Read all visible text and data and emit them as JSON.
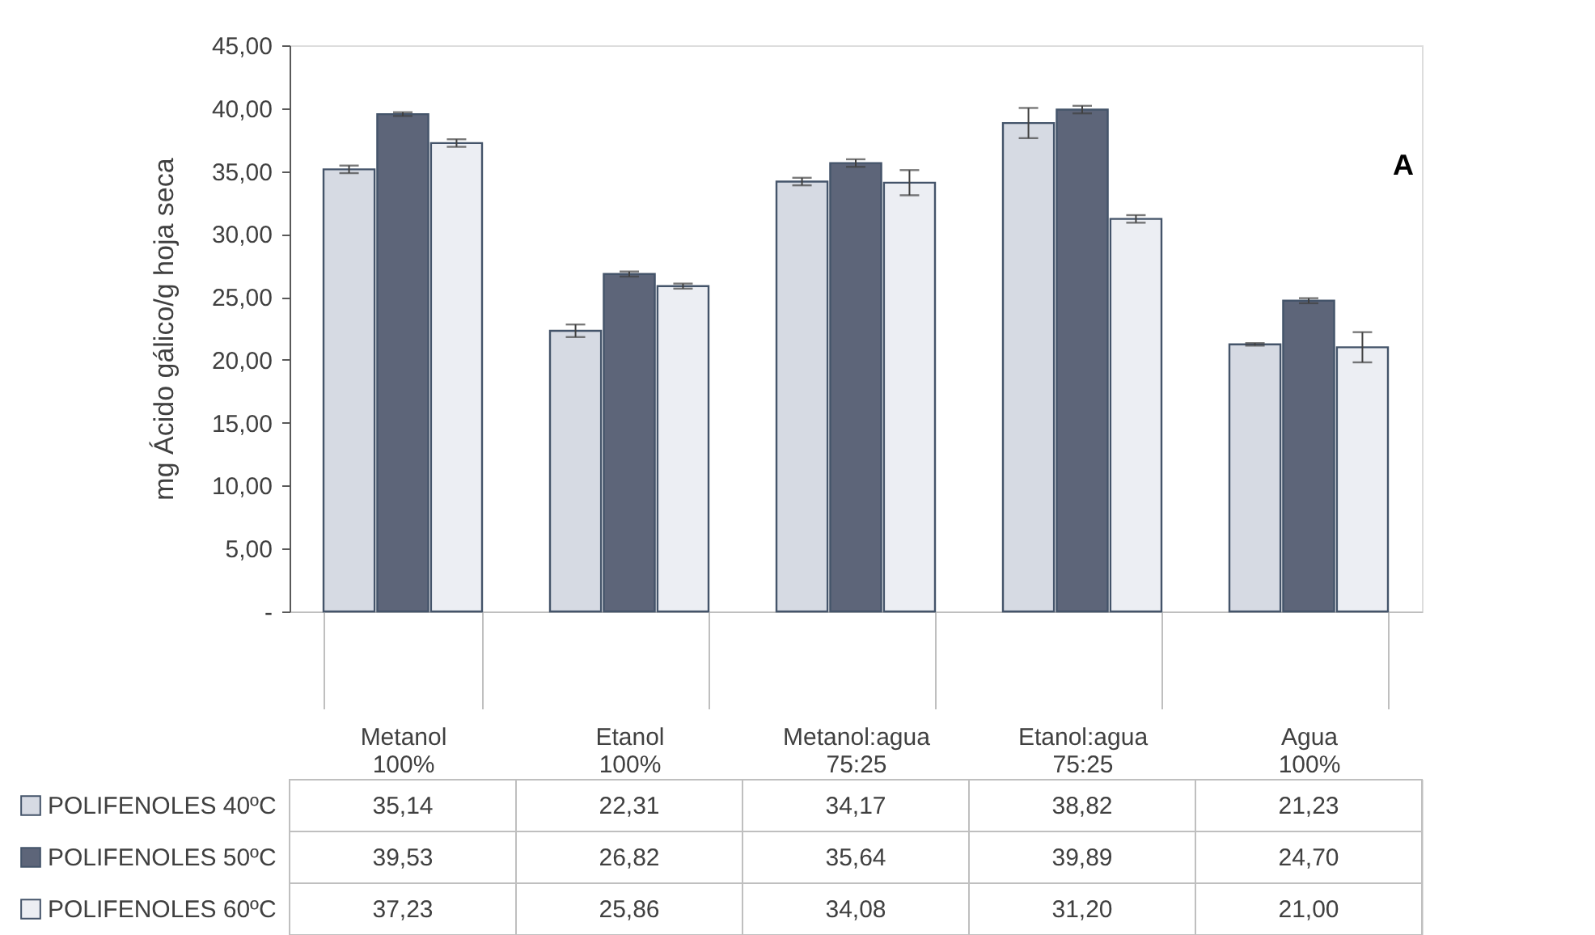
{
  "chart_data": {
    "type": "bar",
    "ylabel": "mg Ácido gálico/g hoja seca",
    "categories": [
      "Metanol 100%",
      "Etanol 100%",
      "Metanol:agua 75:25",
      "Etanol:agua 75:25",
      "Agua 100%"
    ],
    "series": [
      {
        "name": "POLIFENOLES 40ºC",
        "color": "#d6dae3",
        "values": [
          35.14,
          22.31,
          34.17,
          38.82,
          21.23
        ],
        "value_labels": [
          "35,14",
          "22,31",
          "34,17",
          "38,82",
          "21,23"
        ],
        "errors": [
          0.3,
          0.5,
          0.3,
          1.2,
          0.1
        ]
      },
      {
        "name": "POLIFENOLES 50ºC",
        "color": "#5d6579",
        "values": [
          39.53,
          26.82,
          35.64,
          39.89,
          24.7
        ],
        "value_labels": [
          "39,53",
          "26,82",
          "35,64",
          "39,89",
          "24,70"
        ],
        "errors": [
          0.15,
          0.2,
          0.3,
          0.3,
          0.2
        ]
      },
      {
        "name": "POLIFENOLES 60ºC",
        "color": "#eceef3",
        "values": [
          37.23,
          25.86,
          34.08,
          31.2,
          21.0
        ],
        "value_labels": [
          "37,23",
          "25,86",
          "34,08",
          "31,20",
          "21,00"
        ],
        "errors": [
          0.3,
          0.2,
          1.0,
          0.3,
          1.2
        ]
      }
    ],
    "ylim": [
      0,
      45
    ],
    "yticks": [
      {
        "value": 0,
        "label": "-"
      },
      {
        "value": 5,
        "label": "5,00"
      },
      {
        "value": 10,
        "label": "10,00"
      },
      {
        "value": 15,
        "label": "15,00"
      },
      {
        "value": 20,
        "label": "20,00"
      },
      {
        "value": 25,
        "label": "25,00"
      },
      {
        "value": 30,
        "label": "30,00"
      },
      {
        "value": 35,
        "label": "35,00"
      },
      {
        "value": 40,
        "label": "40,00"
      },
      {
        "value": 45,
        "label": "45,00"
      }
    ],
    "data_labels": true,
    "grid": false,
    "legend": "bottom left",
    "annotations": [
      "A"
    ]
  }
}
